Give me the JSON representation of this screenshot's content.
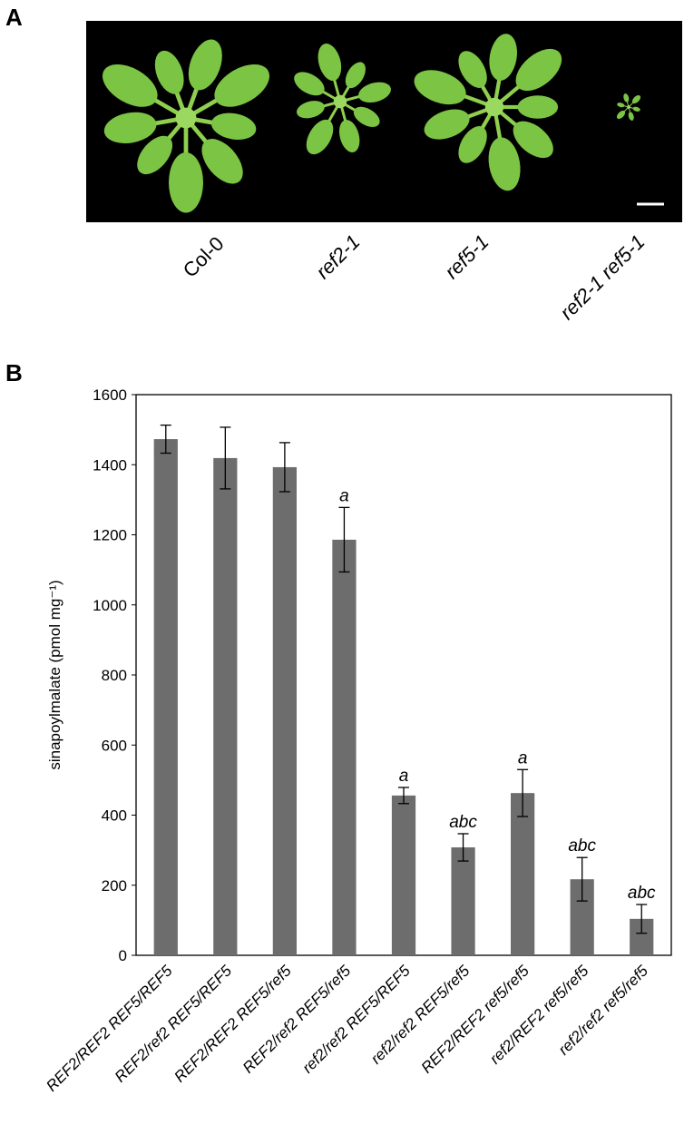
{
  "panel_a": {
    "label": "A",
    "genotypes": [
      {
        "text": "Col-0",
        "italic": false
      },
      {
        "text": "ref2-1",
        "italic": true
      },
      {
        "text": "ref5-1",
        "italic": true
      },
      {
        "text": "ref2-1 ref5-1",
        "italic": true
      }
    ]
  },
  "panel_b": {
    "label": "B"
  },
  "chart_data": {
    "type": "bar",
    "ylabel": "sinapoylmalate (pmol mg⁻¹)",
    "categories": [
      "REF2/REF2 REF5/REF5",
      "REF2/ref2 REF5/REF5",
      "REF2/REF2 REF5/ref5",
      "REF2/ref2 REF5/ref5",
      "ref2/ref2 REF5/REF5",
      "ref2/ref2 REF5/ref5",
      "REF2/REF2 ref5/ref5",
      "ref2/REF2 ref5/ref5",
      "ref2/ref2 ref5/ref5"
    ],
    "values": [
      1473,
      1419,
      1393,
      1186,
      456,
      308,
      463,
      217,
      104
    ],
    "errors": [
      40,
      88,
      70,
      92,
      23,
      39,
      67,
      62,
      41
    ],
    "annotations": [
      null,
      null,
      null,
      "a",
      "a",
      "abc",
      "a",
      "abc",
      "abc"
    ],
    "color": "#6d6d6d",
    "ylim": [
      0,
      1600
    ],
    "yticks": [
      0,
      200,
      400,
      600,
      800,
      1000,
      1200,
      1400,
      1600
    ],
    "grid": false
  }
}
